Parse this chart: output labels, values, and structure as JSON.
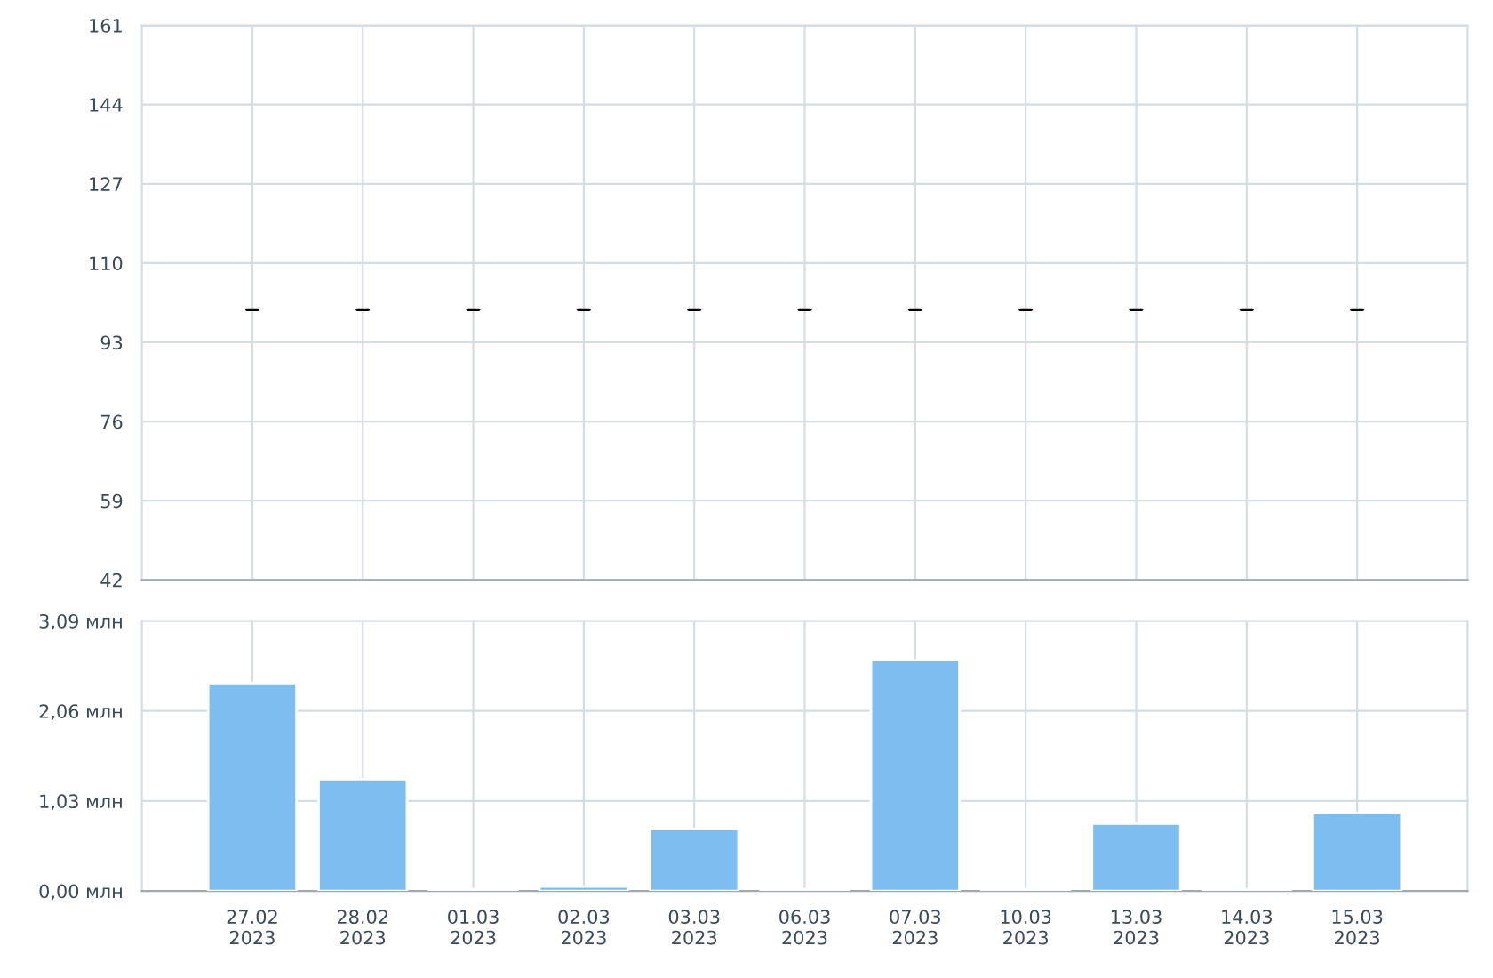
{
  "chart_data": [
    {
      "type": "candlestick",
      "categories": [
        null,
        null,
        null,
        null,
        null,
        null,
        null,
        null,
        null,
        null,
        null
      ],
      "ohlc": [
        [
          100,
          100,
          100,
          100
        ],
        [
          100,
          100,
          100,
          100
        ],
        [
          100,
          100,
          100,
          100
        ],
        [
          100,
          100,
          100,
          100
        ],
        [
          100,
          100,
          100,
          100
        ],
        [
          100,
          100,
          100,
          100
        ],
        [
          100,
          100,
          100,
          100
        ],
        [
          100,
          100,
          100,
          100
        ],
        [
          100,
          100,
          100,
          100
        ],
        [
          100,
          100,
          100,
          100
        ],
        [
          100,
          100,
          100,
          100
        ]
      ],
      "color": "#000000",
      "ylim": [
        42,
        161
      ],
      "yticks": [
        42,
        59,
        76,
        93,
        110,
        127,
        144,
        161
      ],
      "grid": true,
      "tick_labels": "y"
    },
    {
      "type": "bar",
      "categories": [
        "27.02\n2023",
        "28.02\n2023",
        "01.03\n2023",
        "02.03\n2023",
        "03.03\n2023",
        "06.03\n2023",
        "07.03\n2023",
        "10.03\n2023",
        "13.03\n2023",
        "14.03\n2023",
        "15.03\n2023"
      ],
      "values": [
        2.38,
        1.28,
        0.02,
        0.05,
        0.71,
        0.02,
        2.64,
        0.02,
        0.77,
        0.02,
        0.89
      ],
      "color": "#7dbdf0",
      "ylim": [
        0,
        3.09
      ],
      "yticks": [
        {
          "value": 0,
          "label": "0,00 млн"
        },
        {
          "value": 1.03,
          "label": "1,03 млн"
        },
        {
          "value": 2.06,
          "label": "2,06 млн"
        },
        {
          "value": 3.09,
          "label": "3,09 млн"
        }
      ],
      "grid": true
    }
  ]
}
